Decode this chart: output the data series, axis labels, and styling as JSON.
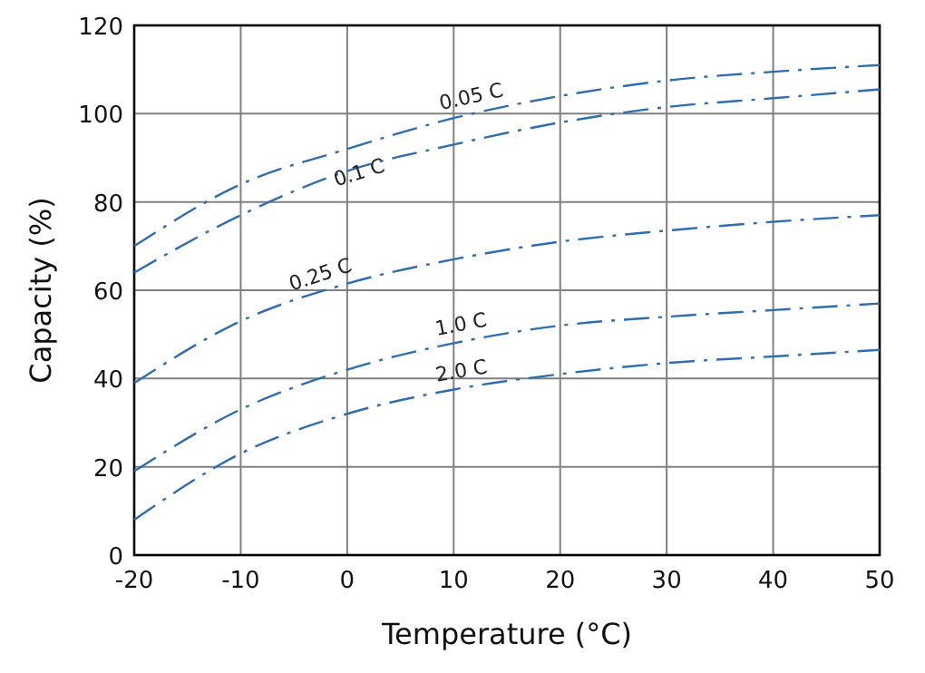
{
  "chart_data": {
    "type": "line",
    "xlabel": "Temperature (°C)",
    "ylabel": "Capacity (%)",
    "x": [
      -20,
      -10,
      0,
      10,
      20,
      30,
      40,
      50
    ],
    "series": [
      {
        "name": "0.05 C",
        "color": "#2e6eb0",
        "values": [
          70,
          84,
          92,
          99,
          104,
          107.5,
          109.5,
          111
        ]
      },
      {
        "name": "0.1 C",
        "color": "#2e6eb0",
        "values": [
          64,
          77,
          87,
          93,
          98,
          101.5,
          103.5,
          105.5
        ]
      },
      {
        "name": "0.25 C",
        "color": "#2e6eb0",
        "values": [
          39,
          53,
          61.5,
          67,
          71,
          73.5,
          75.5,
          77
        ]
      },
      {
        "name": "1.0 C",
        "color": "#2e6eb0",
        "values": [
          19,
          33,
          42,
          48,
          52,
          54,
          55.5,
          57
        ]
      },
      {
        "name": "2.0 C",
        "color": "#2e6eb0",
        "values": [
          8,
          23,
          32,
          37.5,
          41,
          43.5,
          45,
          46.5
        ]
      }
    ],
    "xlim": [
      -20,
      50
    ],
    "xticks": [
      -20,
      -10,
      0,
      10,
      20,
      30,
      40,
      50
    ],
    "ylim": [
      0,
      120
    ],
    "yticks": [
      0,
      20,
      40,
      60,
      80,
      100,
      120
    ],
    "grid": true,
    "line_style": "dashed",
    "marker": "none"
  }
}
